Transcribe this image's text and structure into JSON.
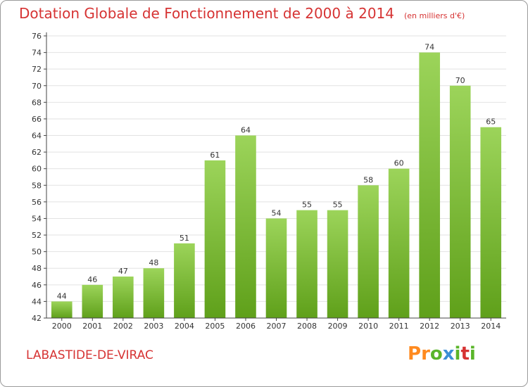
{
  "header": {
    "title": "Dotation Globale de Fonctionnement de 2000 à 2014",
    "unit": "(en milliers d'€)"
  },
  "footer": {
    "commune": "LABASTIDE-DE-VIRAC",
    "logo_text": "Proxiti"
  },
  "colors": {
    "bar_top": "#9cd45a",
    "bar_bottom": "#5fa01a",
    "title": "#d63333",
    "grid": "#e2e2e2",
    "axis": "#444444"
  },
  "chart_data": {
    "type": "bar",
    "title": "Dotation Globale de Fonctionnement de 2000 à 2014",
    "subtitle": "(en milliers d'€)",
    "xlabel": "",
    "ylabel": "",
    "categories": [
      "2000",
      "2001",
      "2002",
      "2003",
      "2004",
      "2005",
      "2006",
      "2007",
      "2008",
      "2009",
      "2010",
      "2011",
      "2012",
      "2013",
      "2014"
    ],
    "values": [
      44,
      46,
      47,
      48,
      51,
      61,
      64,
      54,
      55,
      55,
      58,
      60,
      74,
      70,
      65
    ],
    "ylim": [
      42,
      76
    ],
    "ytick_step": 2,
    "grid": true,
    "data_labels": true
  }
}
